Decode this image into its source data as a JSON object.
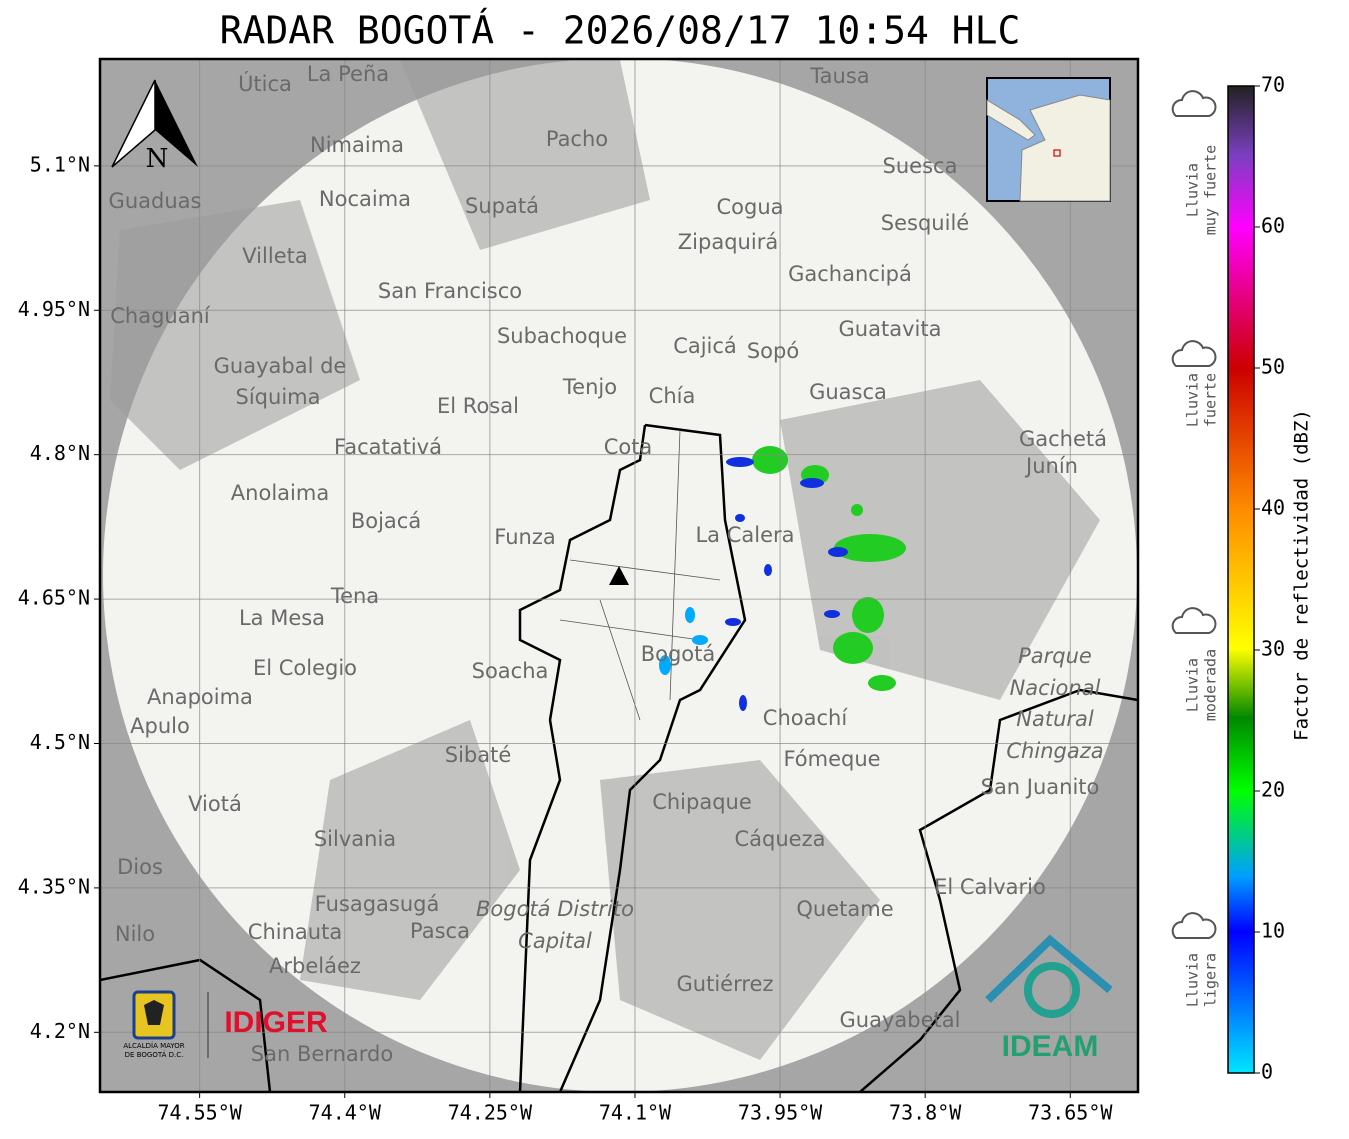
{
  "header": {
    "title": "RADAR BOGOTÁ - 2026/08/17 10:54 HLC"
  },
  "map": {
    "xlim": [
      -74.653,
      -73.58
    ],
    "ylim": [
      4.138,
      5.211
    ],
    "xticks": [
      {
        "value": -74.55,
        "label": "74.55°W"
      },
      {
        "value": -74.4,
        "label": "74.4°W"
      },
      {
        "value": -74.25,
        "label": "74.25°W"
      },
      {
        "value": -74.1,
        "label": "74.1°W"
      },
      {
        "value": -73.95,
        "label": "73.95°W"
      },
      {
        "value": -73.8,
        "label": "73.8°W"
      },
      {
        "value": -73.65,
        "label": "73.65°W"
      }
    ],
    "yticks": [
      {
        "value": 5.1,
        "label": "5.1°N"
      },
      {
        "value": 4.95,
        "label": "4.95°N"
      },
      {
        "value": 4.8,
        "label": "4.8°N"
      },
      {
        "value": 4.65,
        "label": "4.65°N"
      },
      {
        "value": 4.5,
        "label": "4.5°N"
      },
      {
        "value": 4.35,
        "label": "4.35°N"
      },
      {
        "value": 4.2,
        "label": "4.2°N"
      }
    ],
    "grid": true,
    "north": "N",
    "places": [
      "La Peña",
      "Útica",
      "Tausa",
      "Pacho",
      "Nimaima",
      "Nocaima",
      "Supatá",
      "Guaduas",
      "Suesca",
      "Cogua",
      "Sesquilé",
      "Zipaquirá",
      "Villeta",
      "Gachancipá",
      "San Francisco",
      "Chaguaní",
      "Subachoque",
      "Guatavita",
      "Cajicá",
      "Sopó",
      "Guayabal de",
      "Síquima",
      "Tenjo",
      "Chía",
      "Guasca",
      "El Rosal",
      "Facatativá",
      "Cota",
      "Gachetá",
      "Junín",
      "Anolaima",
      "Bojacá",
      "Funza",
      "La Calera",
      "Tena",
      "La Mesa",
      "Bogotá",
      "Soacha",
      "El Colegio",
      "Parque",
      "Nacional",
      "Natural",
      "Chingaza",
      "Anapoima",
      "Apulo",
      "Choachí",
      "Sibaté",
      "Fómeque",
      "San Juanito",
      "Chipaque",
      "Viotá",
      "Cáqueza",
      "Silvania",
      "Dios",
      "El Calvario",
      "Fusagasugá",
      "Quetame",
      "Bogotá Distrito",
      "Capital",
      "Nilo",
      "Chinauta",
      "Pasca",
      "Arbeláez",
      "Gutiérrez",
      "Guayabetal",
      "San Bernardo"
    ]
  },
  "colorbar": {
    "label": "Factor de reflectividad (dBZ)",
    "clim": [
      0,
      70
    ],
    "ticks": [
      0,
      10,
      20,
      30,
      40,
      50,
      60,
      70
    ]
  },
  "legend": [
    [
      "Lluvia",
      "muy fuerte"
    ],
    [
      "Lluvia",
      "fuerte"
    ],
    [
      "Lluvia",
      "moderada"
    ],
    [
      "Lluvia",
      "ligera"
    ]
  ],
  "logos": {
    "alcaldia": [
      "ALCALDÍA MAYOR",
      "DE BOGOTÁ D.C."
    ],
    "idiger": "IDIGER",
    "ideam": "IDEAM"
  }
}
